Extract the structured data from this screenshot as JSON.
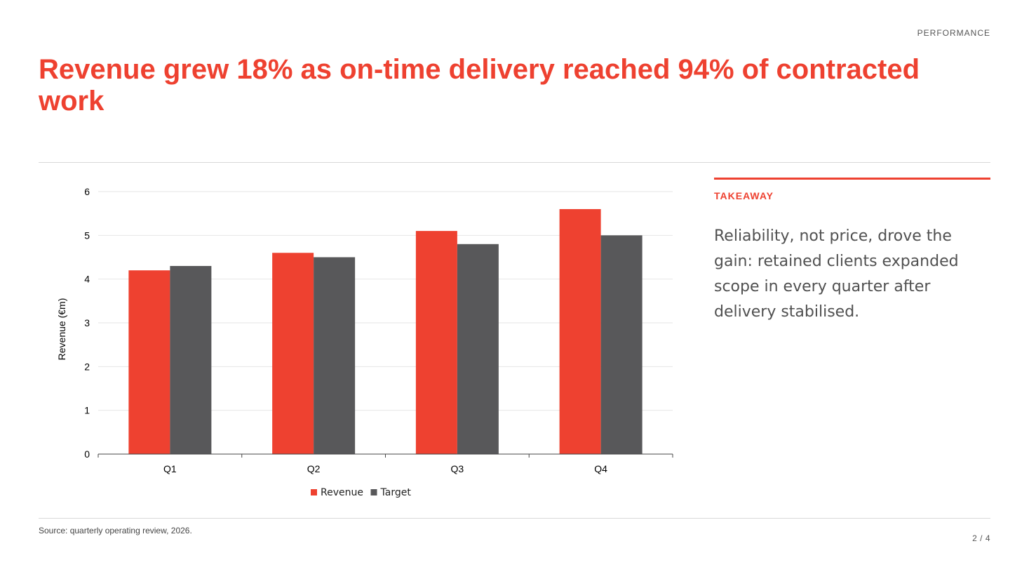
{
  "slide": {
    "section_label": "PERFORMANCE",
    "title": "Revenue grew 18% as on-time delivery reached 94% of contracted work",
    "takeaway_label": "TAKEAWAY",
    "takeaway_text": "Reliability, not price, drove the gain: retained clients expanded scope in every quarter after delivery stabilised.",
    "source": "Source: quarterly operating review, 2026.",
    "page_number": "2 / 4"
  },
  "colors": {
    "accent": "#ee4130",
    "target": "#58585a"
  },
  "chart_data": {
    "type": "bar",
    "categories": [
      "Q1",
      "Q2",
      "Q3",
      "Q4"
    ],
    "series": [
      {
        "name": "Revenue",
        "values": [
          4.2,
          4.6,
          5.1,
          5.6
        ],
        "color": "#ee4130"
      },
      {
        "name": "Target",
        "values": [
          4.3,
          4.5,
          4.8,
          5.0
        ],
        "color": "#58585a"
      }
    ],
    "ylabel": "Revenue (€m)",
    "ylim": [
      0,
      6
    ],
    "yticks": [
      0,
      1,
      2,
      3,
      4,
      5,
      6
    ],
    "grid": true,
    "legend": "bottom"
  }
}
